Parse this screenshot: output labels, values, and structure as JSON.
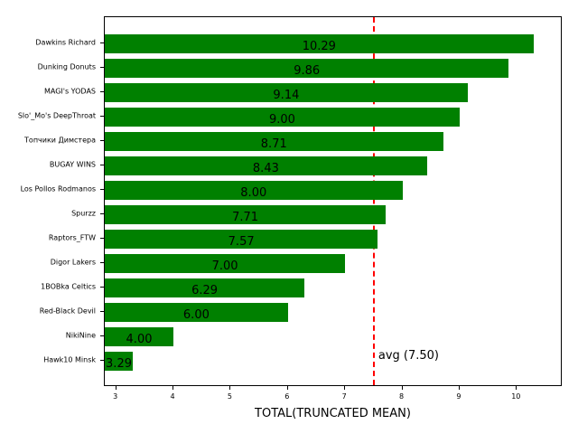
{
  "chart_data": {
    "type": "bar",
    "orientation": "horizontal",
    "title": "",
    "xlabel": "TOTAL(TRUNCATED MEAN)",
    "ylabel": "",
    "xlim": [
      2.8,
      10.8
    ],
    "xticks": [
      3,
      4,
      5,
      6,
      7,
      8,
      9,
      10
    ],
    "grid": false,
    "categories": [
      "Dawkins Richard",
      "Dunking Donuts",
      "MAGI's YODAS",
      "Slo'_Mo's DeepThroat",
      "Топчики Димстера",
      "BUGAY WINS",
      "Los Pollos Rodmanos",
      "Spurzz",
      "Raptors_FTW",
      "Digor Lakers",
      "1BOBka Celtics",
      "Red-Black Devil",
      "NikiNine",
      "Hawk10 Minsk"
    ],
    "values": [
      10.29,
      9.86,
      9.14,
      9.0,
      8.71,
      8.43,
      8.0,
      7.71,
      7.57,
      7.0,
      6.29,
      6.0,
      4.0,
      3.29
    ],
    "value_labels": [
      "10.29",
      "9.86",
      "9.14",
      "9.00",
      "8.71",
      "8.43",
      "8.00",
      "7.71",
      "7.57",
      "7.00",
      "6.29",
      "6.00",
      "4.00",
      "3.29"
    ],
    "bar_color": "#008000",
    "reference_line": {
      "value": 7.5,
      "label": "avg (7.50)",
      "color": "#ff0000",
      "style": "dashed"
    }
  }
}
